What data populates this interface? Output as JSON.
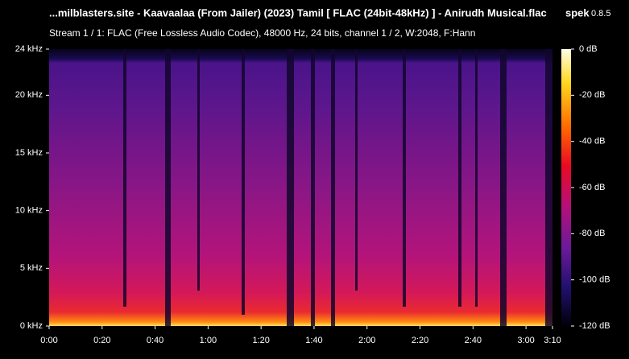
{
  "chart_data": {
    "type": "spectrogram",
    "title": "...milblasters.site - Kaavaalaa (From Jailer) (2023) Tamil [ FLAC (24bit-48kHz) ] - Anirudh Musical.flac",
    "app_name": "spek",
    "app_version": "0.8.5",
    "subtitle": "Stream 1 / 1: FLAC (Free Lossless Audio Codec), 48000 Hz, 24 bits, channel 1 / 2, W:2048, F:Hann",
    "xlim": [
      0,
      190
    ],
    "xticks": [
      {
        "value": 0,
        "label": "0:00"
      },
      {
        "value": 20,
        "label": "0:20"
      },
      {
        "value": 40,
        "label": "0:40"
      },
      {
        "value": 60,
        "label": "1:00"
      },
      {
        "value": 80,
        "label": "1:20"
      },
      {
        "value": 100,
        "label": "1:40"
      },
      {
        "value": 120,
        "label": "2:00"
      },
      {
        "value": 140,
        "label": "2:20"
      },
      {
        "value": 160,
        "label": "2:40"
      },
      {
        "value": 180,
        "label": "3:00"
      },
      {
        "value": 190,
        "label": "3:10"
      }
    ],
    "ylim": [
      0,
      24
    ],
    "yticks": [
      {
        "value": 0,
        "label": "0 kHz"
      },
      {
        "value": 5,
        "label": "5 kHz"
      },
      {
        "value": 10,
        "label": "10 kHz"
      },
      {
        "value": 15,
        "label": "15 kHz"
      },
      {
        "value": 20,
        "label": "20 kHz"
      },
      {
        "value": 24,
        "label": "24 kHz"
      }
    ],
    "colorbar_lim": [
      -120,
      0
    ],
    "colorbar_ticks": [
      {
        "value": 0,
        "label": "0 dB"
      },
      {
        "value": -20,
        "label": "-20 dB"
      },
      {
        "value": -40,
        "label": "-40 dB"
      },
      {
        "value": -60,
        "label": "-60 dB"
      },
      {
        "value": -80,
        "label": "-80 dB"
      },
      {
        "value": -100,
        "label": "-100 dB"
      },
      {
        "value": -120,
        "label": "-120 dB"
      }
    ]
  }
}
